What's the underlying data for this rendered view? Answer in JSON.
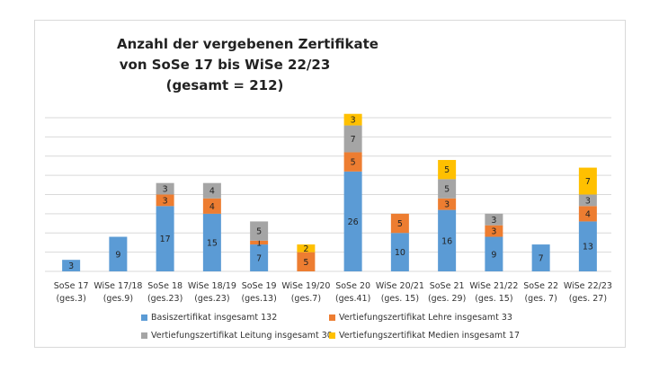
{
  "chart_data": {
    "type": "bar",
    "stacked": true,
    "title": [
      "Anzahl der vergebenen Zertifikate",
      "von SoSe 17 bis WiSe 22/23",
      "(gesamt = 212)"
    ],
    "categories": [
      [
        "SoSe 17",
        "(ges.3)"
      ],
      [
        "WiSe 17/18",
        "(ges.9)"
      ],
      [
        "SoSe 18",
        "(ges.23)"
      ],
      [
        "WiSe 18/19",
        "(ges.23)"
      ],
      [
        "SoSe 19",
        "(ges.13)"
      ],
      [
        "WiSe 19/20",
        "(ges.7)"
      ],
      [
        "SoSe 20",
        "(ges.41)"
      ],
      [
        "WiSe 20/21",
        "(ges. 15)"
      ],
      [
        "SoSe 21",
        "(ges. 29)"
      ],
      [
        "WiSe 21/22",
        "(ges. 15)"
      ],
      [
        "SoSe 22",
        "(ges. 7)"
      ],
      [
        "WiSe 22/23",
        "(ges. 27)"
      ]
    ],
    "series": [
      {
        "name": "Basiszertifikat insgesamt 132",
        "color": "#5B9BD5",
        "values": [
          3,
          9,
          17,
          15,
          7,
          0,
          26,
          10,
          16,
          9,
          7,
          13
        ]
      },
      {
        "name": "Vertiefungszertifikat Lehre insgesamt 33",
        "color": "#ED7D31",
        "values": [
          0,
          0,
          3,
          4,
          1,
          5,
          5,
          5,
          3,
          3,
          0,
          4
        ]
      },
      {
        "name": "Vertiefungszertifikat Leitung insgesamt 30",
        "color": "#A5A5A5",
        "values": [
          0,
          0,
          3,
          4,
          5,
          0,
          7,
          0,
          5,
          3,
          0,
          3
        ]
      },
      {
        "name": "Vertiefungszertifikat Medien insgesamt 17",
        "color": "#FFC000",
        "values": [
          0,
          0,
          0,
          0,
          0,
          2,
          3,
          0,
          5,
          0,
          0,
          7
        ]
      }
    ],
    "ylim": [
      0,
      40
    ],
    "ytick_step": 5,
    "y_axis_labels_shown": false,
    "grid": true,
    "data_labels": true,
    "legend_position": "bottom"
  }
}
